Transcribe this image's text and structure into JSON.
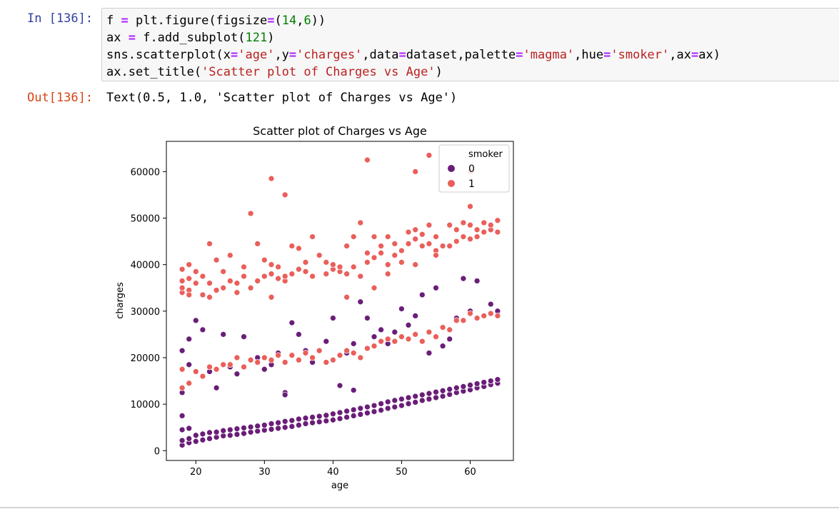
{
  "cell": {
    "in_prompt": "In [136]:",
    "out_prompt": "Out[136]:",
    "output_text": "Text(0.5, 1.0, 'Scatter plot of Charges vs Age')"
  },
  "code_lines": [
    [
      [
        "v",
        "f "
      ],
      [
        "op",
        "="
      ],
      [
        "v",
        " plt.figure(figsize"
      ],
      [
        "op",
        "="
      ],
      [
        "v",
        "("
      ],
      [
        "num",
        "14"
      ],
      [
        "v",
        ","
      ],
      [
        "num",
        "6"
      ],
      [
        "v",
        "))"
      ]
    ],
    [
      [
        "v",
        "ax "
      ],
      [
        "op",
        "="
      ],
      [
        "v",
        " f.add_subplot("
      ],
      [
        "num",
        "121"
      ],
      [
        "v",
        ")"
      ]
    ],
    [
      [
        "v",
        "sns.scatterplot(x"
      ],
      [
        "op",
        "="
      ],
      [
        "str",
        "'age'"
      ],
      [
        "v",
        ",y"
      ],
      [
        "op",
        "="
      ],
      [
        "str",
        "'charges'"
      ],
      [
        "v",
        ",data"
      ],
      [
        "op",
        "="
      ],
      [
        "v",
        "dataset,palette"
      ],
      [
        "op",
        "="
      ],
      [
        "str",
        "'magma'"
      ],
      [
        "v",
        ",hue"
      ],
      [
        "op",
        "="
      ],
      [
        "str",
        "'smoker'"
      ],
      [
        "v",
        ",ax"
      ],
      [
        "op",
        "="
      ],
      [
        "v",
        "ax)"
      ]
    ],
    [
      [
        "v",
        "ax.set_title("
      ],
      [
        "str",
        "'Scatter plot of Charges vs Age'"
      ],
      [
        "v",
        ")"
      ]
    ]
  ],
  "colors": {
    "smoker_0": "#6a1e78",
    "smoker_1": "#ea5f5a",
    "prompt_in": "#303f9f",
    "prompt_out": "#d84315"
  },
  "chart_data": {
    "type": "scatter",
    "title": "Scatter plot of Charges vs Age",
    "xlabel": "age",
    "ylabel": "charges",
    "xlim": [
      15.7,
      66.3
    ],
    "ylim": [
      -2100,
      66500
    ],
    "xticks": [
      20,
      30,
      40,
      50,
      60
    ],
    "yticks": [
      0,
      10000,
      20000,
      30000,
      40000,
      50000,
      60000
    ],
    "grid": false,
    "legend": {
      "title": "smoker",
      "placement": "top-right",
      "entries": [
        "0",
        "1"
      ]
    },
    "series": [
      {
        "name": "0",
        "x": [
          18,
          18,
          18,
          19,
          19,
          19,
          20,
          20,
          21,
          21,
          22,
          22,
          23,
          23,
          24,
          24,
          25,
          25,
          26,
          26,
          27,
          27,
          28,
          28,
          29,
          29,
          30,
          30,
          31,
          31,
          32,
          32,
          33,
          33,
          34,
          34,
          35,
          35,
          36,
          36,
          37,
          37,
          38,
          38,
          39,
          39,
          40,
          40,
          41,
          41,
          42,
          42,
          43,
          43,
          44,
          44,
          45,
          45,
          46,
          46,
          47,
          47,
          48,
          48,
          49,
          49,
          50,
          50,
          51,
          51,
          52,
          52,
          53,
          53,
          54,
          54,
          55,
          55,
          56,
          56,
          57,
          57,
          58,
          58,
          59,
          59,
          60,
          60,
          61,
          61,
          62,
          62,
          63,
          63,
          64,
          64,
          18,
          18,
          18,
          19,
          19,
          21,
          22,
          23,
          24,
          25,
          26,
          27,
          28,
          29,
          30,
          31,
          32,
          33,
          34,
          35,
          36,
          37,
          39,
          40,
          42,
          43,
          44,
          45,
          46,
          47,
          48,
          49,
          50,
          51,
          52,
          53,
          54,
          55,
          56,
          57,
          58,
          59,
          60,
          61,
          62,
          63,
          64,
          20,
          33,
          41,
          43
        ],
        "y": [
          1200,
          2200,
          4500,
          1700,
          2600,
          4800,
          2000,
          3300,
          2300,
          3600,
          2600,
          3900,
          2900,
          4000,
          3200,
          4300,
          3300,
          4500,
          3500,
          4700,
          3700,
          4900,
          4000,
          5100,
          4200,
          5300,
          4400,
          5500,
          4600,
          5800,
          4800,
          6000,
          5000,
          6300,
          5200,
          6500,
          5500,
          6800,
          5800,
          7000,
          6000,
          7200,
          6200,
          7400,
          6400,
          7600,
          6600,
          7900,
          6900,
          8200,
          7200,
          8500,
          7500,
          8800,
          7800,
          9100,
          8100,
          9400,
          8400,
          9700,
          8700,
          10100,
          9100,
          10500,
          9400,
          10800,
          9700,
          11100,
          10100,
          11400,
          10400,
          11700,
          10800,
          12000,
          11100,
          12300,
          11400,
          12600,
          11700,
          12900,
          12100,
          13200,
          12500,
          13500,
          12800,
          13800,
          13100,
          14100,
          13500,
          14400,
          13800,
          14700,
          14200,
          15000,
          14500,
          15300,
          7500,
          12500,
          21500,
          18500,
          24000,
          26000,
          17000,
          13500,
          25000,
          18000,
          16500,
          24500,
          19500,
          20000,
          17500,
          18500,
          21000,
          12500,
          27500,
          25000,
          21500,
          19000,
          23500,
          28500,
          21000,
          23000,
          32000,
          28500,
          24500,
          26000,
          23000,
          25500,
          30500,
          27000,
          29000,
          33500,
          21000,
          35000,
          22500,
          24000,
          28500,
          37000,
          30000,
          36500,
          29000,
          31500,
          30000,
          28000,
          12000,
          14000,
          13000
        ],
        "color": "#6a1e78"
      },
      {
        "name": "1",
        "x": [
          18,
          18,
          18,
          18,
          19,
          19,
          19,
          19,
          20,
          20,
          21,
          21,
          22,
          22,
          23,
          23,
          24,
          24,
          25,
          25,
          26,
          26,
          27,
          27,
          28,
          28,
          29,
          29,
          30,
          30,
          31,
          31,
          32,
          32,
          33,
          33,
          34,
          34,
          35,
          35,
          36,
          36,
          37,
          37,
          38,
          39,
          39,
          40,
          40,
          41,
          41,
          42,
          42,
          43,
          43,
          44,
          44,
          45,
          45,
          46,
          46,
          47,
          47,
          48,
          48,
          49,
          49,
          50,
          50,
          51,
          51,
          52,
          52,
          53,
          53,
          54,
          54,
          55,
          55,
          56,
          57,
          58,
          58,
          59,
          59,
          60,
          60,
          61,
          61,
          62,
          62,
          63,
          63,
          64,
          64,
          18,
          18,
          19,
          20,
          21,
          22,
          23,
          24,
          25,
          26,
          27,
          28,
          29,
          30,
          31,
          32,
          33,
          34,
          35,
          36,
          37,
          38,
          39,
          40,
          41,
          42,
          43,
          44,
          45,
          46,
          47,
          48,
          49,
          50,
          51,
          52,
          53,
          54,
          55,
          56,
          57,
          58,
          59,
          60,
          61,
          62,
          63,
          64,
          22,
          31,
          42,
          46,
          48,
          52,
          55,
          57,
          60,
          28,
          31,
          33,
          45,
          52,
          54,
          45,
          60
        ],
        "y": [
          34000,
          36500,
          39000,
          35000,
          34500,
          37000,
          33500,
          40000,
          36000,
          38500,
          33500,
          37500,
          36000,
          44500,
          34500,
          41000,
          35000,
          38500,
          36500,
          42000,
          34000,
          36000,
          37500,
          39500,
          35000,
          51000,
          36500,
          44500,
          37500,
          41000,
          38000,
          40000,
          37000,
          39500,
          36500,
          37500,
          38000,
          44000,
          39000,
          43500,
          38500,
          40500,
          37500,
          46000,
          42000,
          38000,
          40500,
          39000,
          40000,
          38500,
          39500,
          38000,
          44000,
          39500,
          46000,
          37500,
          49000,
          40500,
          42500,
          41500,
          46000,
          42500,
          44000,
          40000,
          46000,
          42000,
          44500,
          40500,
          43000,
          44500,
          47000,
          45500,
          47500,
          44000,
          46500,
          44500,
          48500,
          43000,
          46000,
          44000,
          48500,
          45000,
          47500,
          46000,
          49000,
          45500,
          48500,
          46000,
          47500,
          47000,
          49000,
          47500,
          48500,
          47000,
          49500,
          13500,
          17500,
          14500,
          17000,
          16000,
          18000,
          17500,
          18500,
          18500,
          20000,
          18000,
          19500,
          19000,
          20000,
          19500,
          20500,
          19000,
          20500,
          19500,
          21000,
          20000,
          21500,
          19000,
          19500,
          20500,
          21500,
          21000,
          20000,
          22000,
          22500,
          23500,
          24000,
          23500,
          24500,
          24000,
          25000,
          23500,
          25500,
          24500,
          26500,
          26000,
          28000,
          28000,
          29500,
          28500,
          29000,
          29500,
          29000,
          33000,
          33000,
          33000,
          35000,
          38000,
          40000,
          42000,
          44000,
          52500,
          51000,
          58500,
          55000,
          62500,
          60000,
          63500,
          62500,
          60000
        ],
        "color": "#ea5f5a"
      }
    ]
  }
}
